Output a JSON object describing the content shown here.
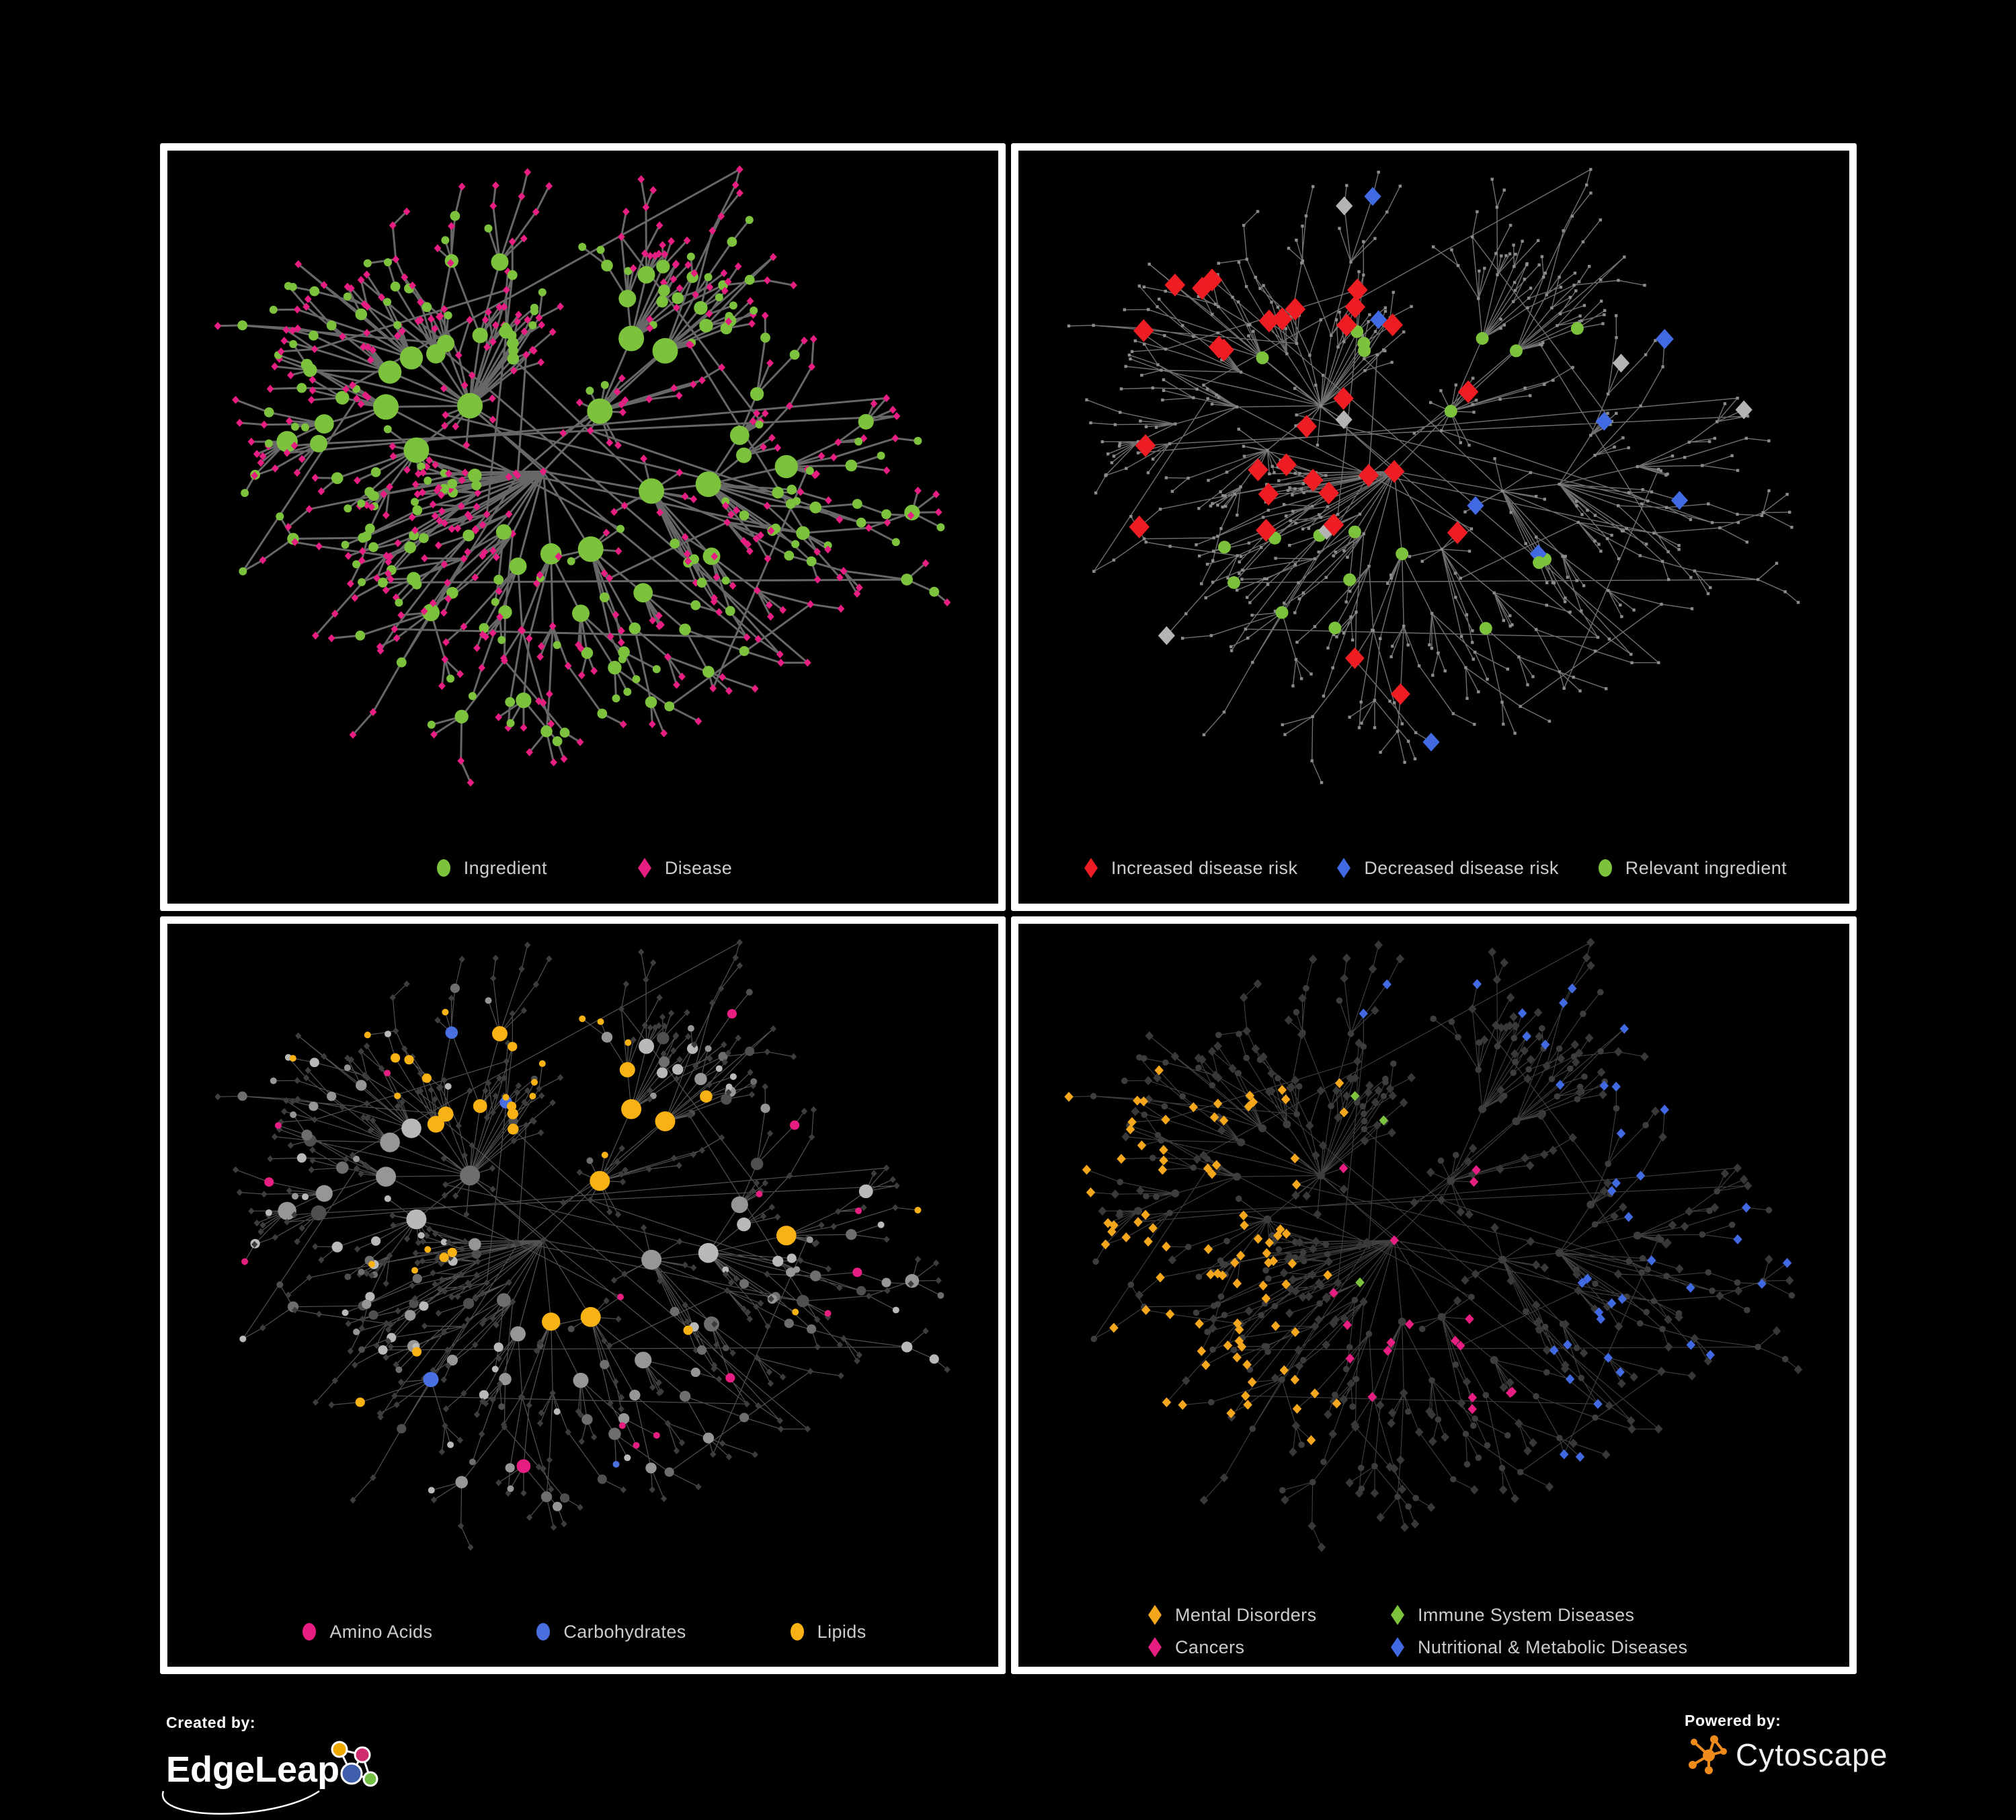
{
  "branding": {
    "created_by_label": "Created by:",
    "created_by_name": "EdgeLeap",
    "powered_by_label": "Powered by:",
    "powered_by_name": "Cytoscape"
  },
  "network": {
    "seed": 11,
    "node_count": 640,
    "cross_link_ratio": 0.045
  },
  "panels": [
    {
      "name": "ingredient-disease-network",
      "mode": "ingredient_disease",
      "legend": {
        "items": [
          {
            "label": "Ingredient",
            "shape": "circle",
            "color": "#7cc23d"
          },
          {
            "label": "Disease",
            "shape": "diamond",
            "color": "#e61e82"
          }
        ]
      },
      "style": {
        "seed": 101,
        "edge_color": "#6d6d6d",
        "edge_width": 3.0,
        "edge_opacity": 0.95,
        "ingredient_color": "#7cc23d",
        "disease_color": "#e61e82"
      }
    },
    {
      "name": "disease-risk-network",
      "mode": "risk_overlay",
      "legend": {
        "items": [
          {
            "label": "Increased disease risk",
            "shape": "diamond",
            "color": "#ee1d23"
          },
          {
            "label": "Decreased disease risk",
            "shape": "diamond",
            "color": "#4169e1"
          },
          {
            "label": "Relevant ingredient",
            "shape": "circle",
            "color": "#7cc23d"
          }
        ]
      },
      "style": {
        "seed": 202,
        "edge_color": "#7c7c7c",
        "edge_width": 1.4,
        "edge_opacity": 0.9,
        "base_color": "#8c8c8c",
        "increased_color": "#ee1d23",
        "decreased_color": "#4169e1",
        "neutral_color": "#b4b4b4",
        "ingredient_color": "#7cc23d"
      }
    },
    {
      "name": "nutrient-class-network",
      "mode": "nutrient_classes",
      "legend": {
        "items": [
          {
            "label": "Amino Acids",
            "shape": "circle",
            "color": "#e61e82"
          },
          {
            "label": "Carbohydrates",
            "shape": "circle",
            "color": "#4a6fe0"
          },
          {
            "label": "Lipids",
            "shape": "circle",
            "color": "#f9b214"
          }
        ]
      },
      "style": {
        "seed": 303,
        "edge_color": "#a3a3a3",
        "edge_width": 1.2,
        "edge_opacity": 0.5,
        "disease_color": "#3d3d3d",
        "gray_palette": [
          "#b9b9b9",
          "#969696",
          "#6e6e6e",
          "#4f4f4f"
        ],
        "amino_color": "#e61e82",
        "carb_color": "#4a6fe0",
        "lipid_color": "#f9b214"
      }
    },
    {
      "name": "disease-category-network",
      "mode": "disease_categories",
      "legend": {
        "items": [
          {
            "label": "Mental Disorders",
            "shape": "diamond",
            "color": "#f4a61c"
          },
          {
            "label": "Immune System Diseases",
            "shape": "diamond",
            "color": "#7cc23d"
          },
          {
            "label": "Cancers",
            "shape": "diamond",
            "color": "#e61e82"
          },
          {
            "label": "Nutritional & Metabolic Diseases",
            "shape": "diamond",
            "color": "#4169e1"
          }
        ]
      },
      "style": {
        "seed": 404,
        "edge_color": "#a3a3a3",
        "edge_width": 1.1,
        "edge_opacity": 0.4,
        "ingredient_color": "#3d3d3d",
        "base_disease_color": "#383838",
        "mental_color": "#f4a61c",
        "cancer_color": "#e61e82",
        "immune_color": "#7cc23d",
        "nutritional_color": "#4169e1"
      }
    }
  ]
}
